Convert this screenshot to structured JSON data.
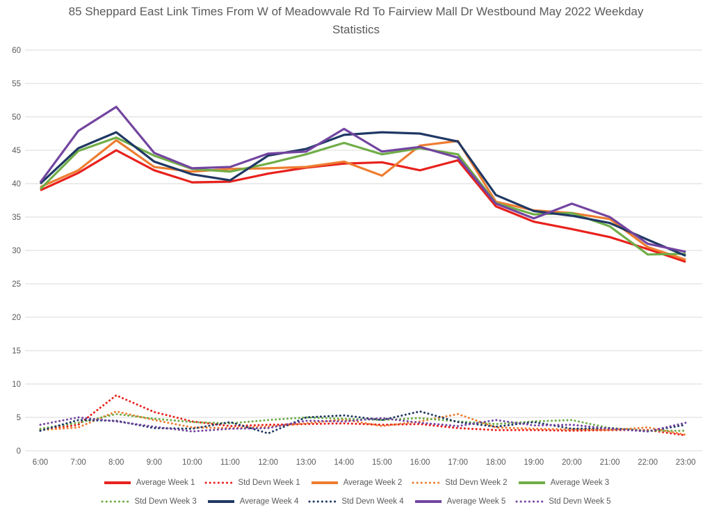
{
  "title": "85 Sheppard East Link Times From W of Meadowvale Rd To Fairview Mall Dr Westbound May 2022 Weekday Statistics",
  "colors": {
    "background": "#FFFFFF",
    "text": "#595959",
    "gridline": "#D9D9D9",
    "week1": "#E8211C",
    "week2": "#ED7D31",
    "week3": "#70AD47",
    "week4": "#1F3864",
    "week5": "#7345A0"
  },
  "chart_data": {
    "type": "line",
    "title": "85 Sheppard East Link Times From W of Meadowvale Rd To Fairview Mall Dr Westbound May 2022 Weekday Statistics",
    "xlabel": "",
    "ylabel": "",
    "ylim": [
      0,
      60
    ],
    "ytick_interval": 5,
    "grid": true,
    "legend_position": "bottom",
    "categories": [
      "6:00",
      "7:00",
      "8:00",
      "9:00",
      "10:00",
      "11:00",
      "12:00",
      "13:00",
      "14:00",
      "15:00",
      "16:00",
      "17:00",
      "18:00",
      "19:00",
      "20:00",
      "21:00",
      "22:00",
      "23:00"
    ],
    "series": [
      {
        "name": "Average Week 1",
        "color": "#E8211C",
        "line_style": "solid",
        "values": [
          39.0,
          41.6,
          45.0,
          42.0,
          40.2,
          40.3,
          41.5,
          42.4,
          43.0,
          43.2,
          42.0,
          43.5,
          36.6,
          34.3,
          33.2,
          32.0,
          30.2,
          28.3
        ]
      },
      {
        "name": "Std Devn Week 1",
        "color": "#E8211C",
        "line_style": "dotted",
        "values": [
          3.1,
          3.9,
          8.3,
          5.8,
          4.4,
          3.7,
          3.9,
          4.0,
          4.1,
          3.9,
          4.0,
          3.4,
          3.1,
          3.1,
          3.0,
          3.1,
          3.1,
          2.3
        ]
      },
      {
        "name": "Average Week 2",
        "color": "#ED7D31",
        "line_style": "solid",
        "values": [
          39.5,
          42.0,
          46.5,
          42.5,
          41.8,
          42.2,
          42.3,
          42.5,
          43.3,
          41.2,
          45.7,
          46.4,
          37.3,
          36.0,
          35.6,
          34.7,
          30.5,
          28.6
        ]
      },
      {
        "name": "Std Devn Week 2",
        "color": "#ED7D31",
        "line_style": "dotted",
        "values": [
          3.1,
          3.5,
          5.9,
          4.6,
          3.5,
          3.4,
          3.6,
          4.1,
          4.7,
          3.7,
          4.4,
          5.5,
          3.5,
          3.3,
          3.2,
          3.1,
          3.5,
          2.4
        ]
      },
      {
        "name": "Average Week 3",
        "color": "#70AD47",
        "line_style": "solid",
        "values": [
          39.2,
          44.9,
          46.9,
          44.2,
          42.2,
          41.8,
          43.0,
          44.4,
          46.1,
          44.4,
          45.3,
          44.4,
          37.1,
          35.4,
          35.6,
          33.6,
          29.4,
          29.5
        ]
      },
      {
        "name": "Std Devn Week 3",
        "color": "#70AD47",
        "line_style": "dotted",
        "values": [
          3.3,
          4.2,
          5.5,
          4.8,
          4.3,
          4.1,
          4.6,
          5.0,
          4.8,
          4.6,
          4.9,
          4.4,
          4.0,
          4.4,
          4.6,
          3.4,
          3.0,
          3.0
        ]
      },
      {
        "name": "Average Week 4",
        "color": "#1F3864",
        "line_style": "solid",
        "values": [
          40.0,
          45.3,
          47.7,
          43.3,
          41.4,
          40.5,
          44.2,
          45.2,
          47.3,
          47.7,
          47.5,
          46.3,
          38.3,
          35.9,
          35.2,
          34.1,
          31.6,
          29.2
        ]
      },
      {
        "name": "Std Devn Week 4",
        "color": "#1F3864",
        "line_style": "dotted",
        "values": [
          3.0,
          4.6,
          4.5,
          3.4,
          3.3,
          4.3,
          2.6,
          5.0,
          5.3,
          4.6,
          5.9,
          4.3,
          3.6,
          4.3,
          3.3,
          3.4,
          2.9,
          3.9
        ]
      },
      {
        "name": "Average Week 5",
        "color": "#7345A0",
        "line_style": "solid",
        "values": [
          40.2,
          47.9,
          51.5,
          44.6,
          42.3,
          42.5,
          44.5,
          44.8,
          48.2,
          44.8,
          45.5,
          43.9,
          37.0,
          34.8,
          37.0,
          35.0,
          31.0,
          29.8
        ]
      },
      {
        "name": "Std Devn Week 5",
        "color": "#7345A0",
        "line_style": "dotted",
        "values": [
          3.9,
          5.0,
          4.4,
          3.6,
          2.9,
          3.3,
          3.4,
          4.5,
          4.4,
          4.9,
          4.2,
          3.7,
          4.6,
          3.8,
          3.9,
          3.3,
          2.9,
          4.2
        ]
      }
    ]
  }
}
